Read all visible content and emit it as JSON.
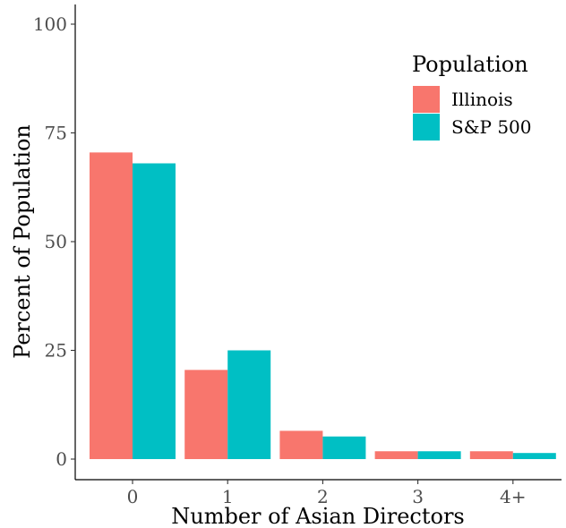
{
  "chart_data": {
    "type": "bar",
    "title": "",
    "xlabel": "Number of Asian Directors",
    "ylabel": "Percent of Population",
    "categories": [
      "0",
      "1",
      "2",
      "3",
      "4+"
    ],
    "ylim": [
      0,
      100
    ],
    "yticks": [
      0,
      25,
      50,
      75,
      100
    ],
    "grid": false,
    "legend": {
      "title": "Population",
      "placement": "top-right",
      "entries": [
        "Illinois",
        "S&P 500"
      ]
    },
    "series": [
      {
        "name": "Illinois",
        "color": "#F8766D",
        "values": [
          70.5,
          20.5,
          6.5,
          1.8,
          1.8
        ]
      },
      {
        "name": "S&P 500",
        "color": "#00BFC4",
        "values": [
          68.0,
          25.0,
          5.2,
          1.8,
          1.4
        ]
      }
    ]
  }
}
